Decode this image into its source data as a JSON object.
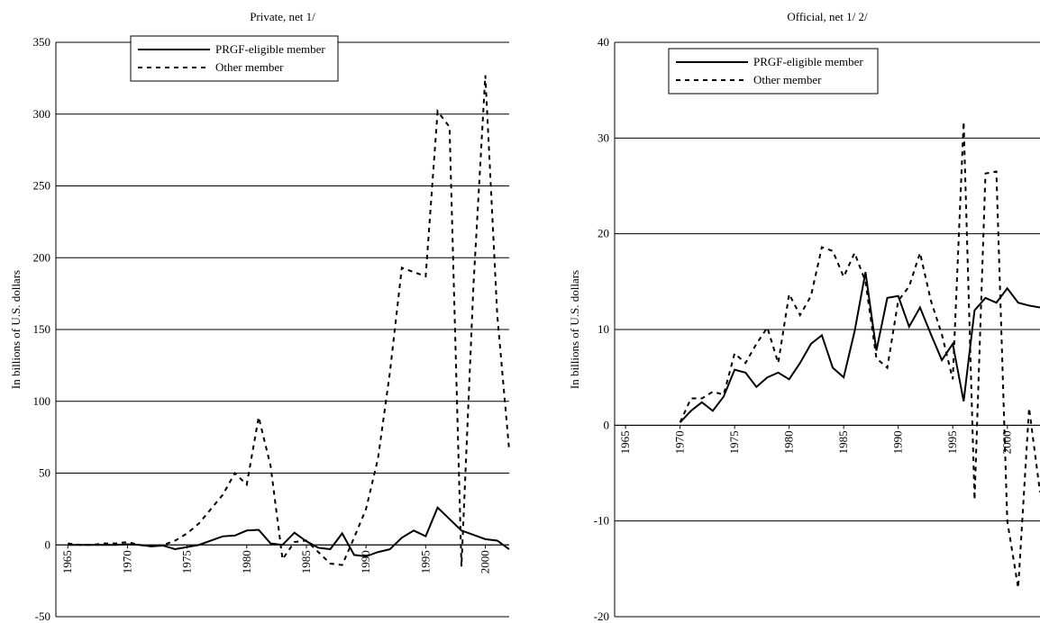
{
  "chart_data": [
    {
      "type": "line",
      "title": "Private, net 1/",
      "y_label": "In billions of U.S. dollars",
      "x": [
        1965,
        1966,
        1967,
        1968,
        1969,
        1970,
        1971,
        1972,
        1973,
        1974,
        1975,
        1976,
        1977,
        1978,
        1979,
        1980,
        1981,
        1982,
        1983,
        1984,
        1985,
        1986,
        1987,
        1988,
        1989,
        1990,
        1991,
        1992,
        1993,
        1994,
        1995,
        1996,
        1997,
        1998,
        1999,
        2000,
        2001,
        2002
      ],
      "xlim": [
        1964,
        2002
      ],
      "xticks": [
        1965,
        1970,
        1975,
        1980,
        1985,
        1990,
        1995,
        2000
      ],
      "ylim": [
        -50,
        350
      ],
      "yticks": [
        -50,
        0,
        50,
        100,
        150,
        200,
        250,
        300,
        350
      ],
      "grid": true,
      "series": [
        {
          "name": "PRGF-eligible member",
          "color": "#000000",
          "dash": "solid",
          "values": [
            0,
            0,
            0,
            0,
            0,
            0.5,
            0,
            -1,
            -0.5,
            -3,
            -1.5,
            0,
            3,
            6,
            6.5,
            10,
            10.5,
            1,
            0,
            8.5,
            2.5,
            -2,
            -3,
            8,
            -7,
            -8,
            -5,
            -3,
            5,
            10,
            6,
            26,
            18,
            10,
            7,
            4,
            3,
            -3
          ]
        },
        {
          "name": "Other member",
          "color": "#000000",
          "dash": "dashed",
          "values": [
            1,
            0,
            0,
            1,
            1,
            2,
            0,
            -1,
            0,
            3,
            8,
            15,
            25,
            35,
            50,
            42,
            89,
            55,
            -10,
            2,
            3,
            -5,
            -13,
            -14,
            5,
            25,
            60,
            120,
            193,
            190,
            187,
            302,
            291,
            -15,
            180,
            327,
            160,
            66
          ]
        }
      ]
    },
    {
      "type": "line",
      "title": "Official, net 1/ 2/",
      "y_label": "In billions of U.S. dollars",
      "x": [
        1970,
        1971,
        1972,
        1973,
        1974,
        1975,
        1976,
        1977,
        1978,
        1979,
        1980,
        1981,
        1982,
        1983,
        1984,
        1985,
        1986,
        1987,
        1988,
        1989,
        1990,
        1991,
        1992,
        1993,
        1994,
        1995,
        1996,
        1997,
        1998,
        1999,
        2000,
        2001,
        2002,
        2003
      ],
      "xlim": [
        1964,
        2003
      ],
      "xticks": [
        1965,
        1970,
        1975,
        1980,
        1985,
        1990,
        1995,
        2000
      ],
      "ylim": [
        -20,
        40
      ],
      "yticks": [
        -20,
        -10,
        0,
        10,
        20,
        30,
        40
      ],
      "grid": true,
      "series": [
        {
          "name": "PRGF-eligible member",
          "color": "#000000",
          "dash": "solid",
          "values": [
            0.3,
            1.5,
            2.4,
            1.5,
            3,
            5.8,
            5.5,
            4,
            5,
            5.5,
            4.8,
            6.5,
            8.5,
            9.4,
            6,
            5,
            9.8,
            16,
            7.8,
            13.3,
            13.5,
            10.3,
            12.3,
            9.5,
            6.8,
            8.5,
            2.5,
            12,
            13.3,
            12.8,
            14.3,
            12.8,
            12.5,
            12.3
          ]
        },
        {
          "name": "Other member",
          "color": "#000000",
          "dash": "dashed",
          "values": [
            0.3,
            2.8,
            2.8,
            3.5,
            3.2,
            7.5,
            6.5,
            8.5,
            10.2,
            6.5,
            13.7,
            11.5,
            13.5,
            18.6,
            18.2,
            15.5,
            18,
            15,
            7,
            6,
            13,
            14.5,
            18,
            13,
            9.5,
            4.8,
            31.7,
            -7.8,
            26.3,
            26.5,
            -10,
            -17,
            1.8,
            -7
          ]
        }
      ]
    }
  ]
}
